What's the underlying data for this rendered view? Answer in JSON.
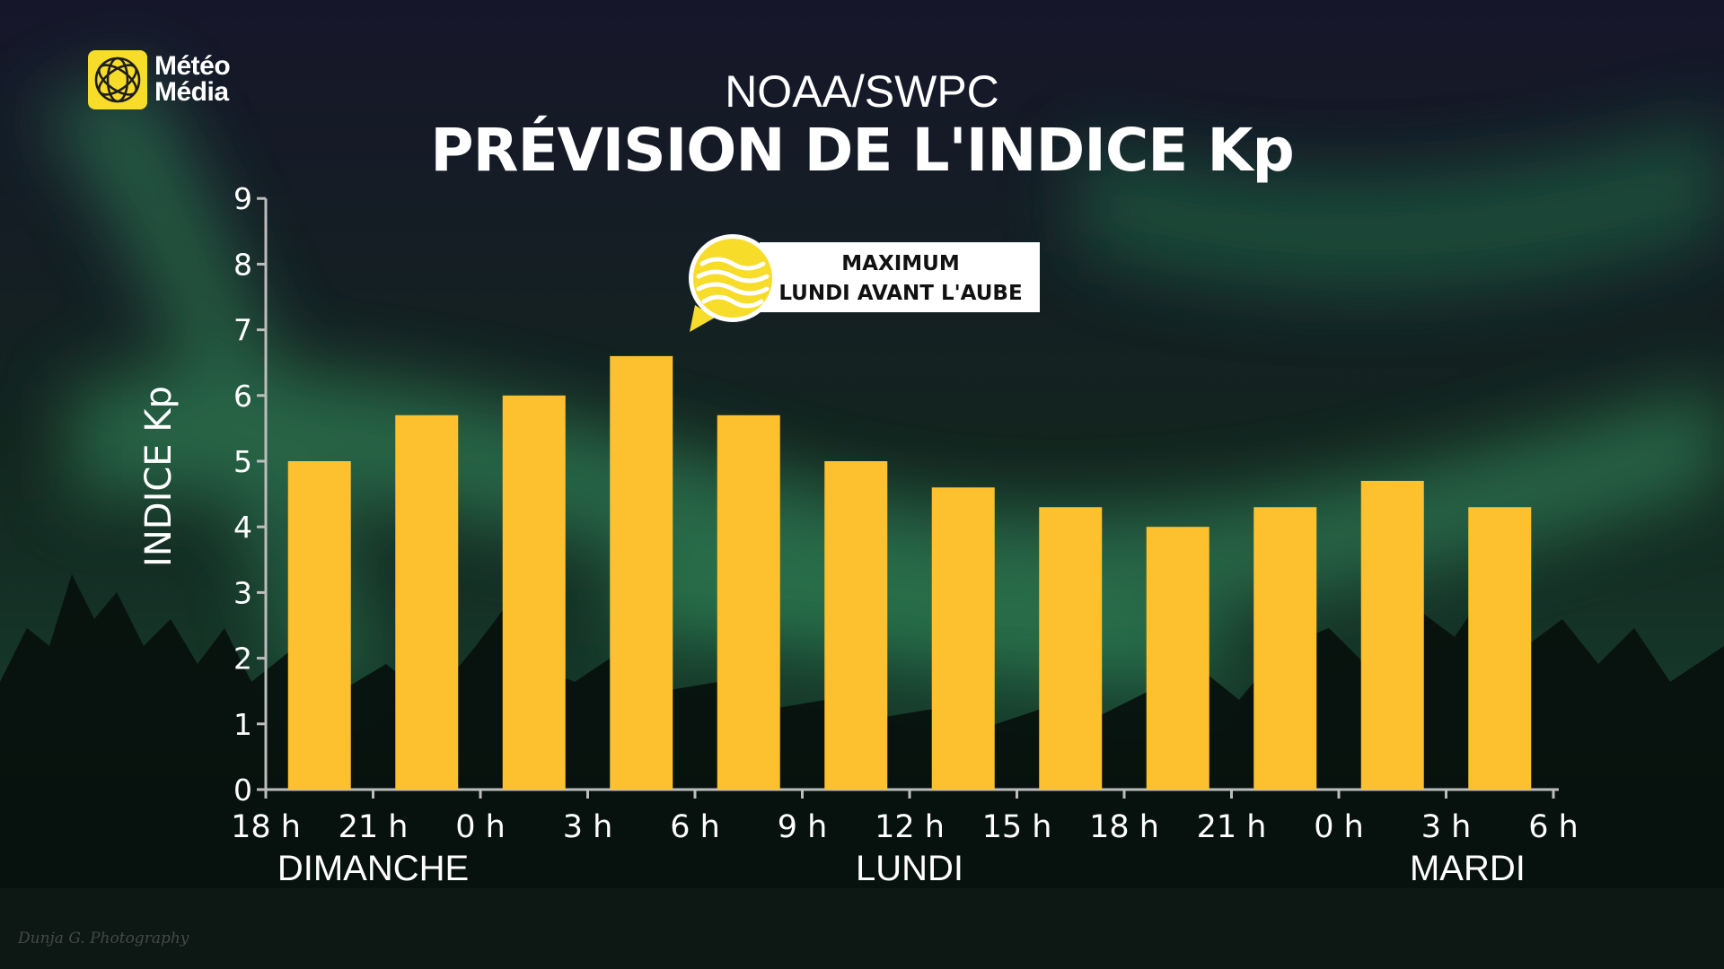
{
  "brand": {
    "line1": "Météo",
    "line2": "Média",
    "color": "#f7dc2a"
  },
  "header": {
    "subtitle": "NOAA/SWPC",
    "title": "PRÉVISION DE L'INDICE Kp"
  },
  "callout": {
    "line1": "MAXIMUM",
    "line2": "LUNDI AVANT L'AUBE",
    "icon": "wave-sun-icon"
  },
  "credit": "Dunja G. Photography",
  "chart_data": {
    "type": "bar",
    "title": "PRÉVISION DE L'INDICE Kp",
    "ylabel": "INDICE Kp",
    "xlabel": "",
    "ylim": [
      0,
      9
    ],
    "yticks": [
      "0",
      "1",
      "2",
      "3",
      "4",
      "5",
      "6",
      "7",
      "8",
      "9"
    ],
    "xticks": [
      "18 h",
      "21 h",
      "0 h",
      "3 h",
      "6 h",
      "9 h",
      "12 h",
      "15 h",
      "18 h",
      "21 h",
      "0 h",
      "3 h",
      "6 h"
    ],
    "days": [
      {
        "label": "DIMANCHE",
        "at_tick": 1
      },
      {
        "label": "LUNDI",
        "at_tick": 6
      },
      {
        "label": "MARDI",
        "at_tick": 11.2
      }
    ],
    "values": [
      5.0,
      5.7,
      6.0,
      6.6,
      5.7,
      5.0,
      4.6,
      4.3,
      4.0,
      4.3,
      4.7,
      4.3
    ],
    "bar_color": "#fdc02f",
    "grid": false
  }
}
